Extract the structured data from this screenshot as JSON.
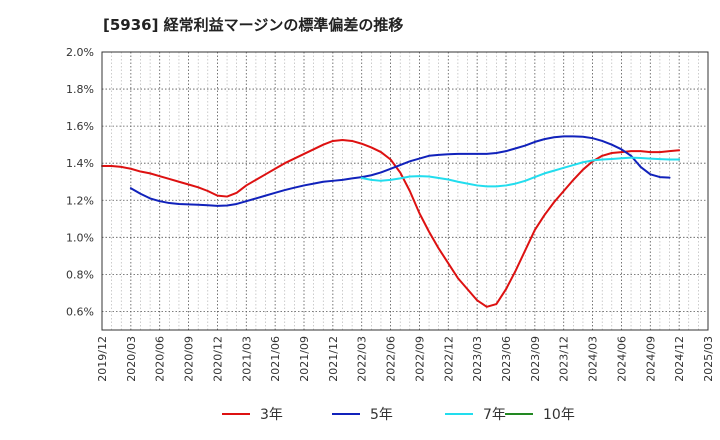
{
  "chart_data": {
    "type": "line",
    "title": "[5936]  経常利益マージンの標準偏差の推移",
    "xlabel": "",
    "ylabel": "",
    "x_ticks": [
      "2019/12",
      "2020/03",
      "2020/06",
      "2020/09",
      "2020/12",
      "2021/03",
      "2021/06",
      "2021/09",
      "2021/12",
      "2022/03",
      "2022/06",
      "2022/09",
      "2022/12",
      "2023/03",
      "2023/06",
      "2023/09",
      "2023/12",
      "2024/03",
      "2024/06",
      "2024/09",
      "2024/12",
      "2025/03"
    ],
    "y_ticks": [
      "0.6%",
      "0.8%",
      "1.0%",
      "1.2%",
      "1.4%",
      "1.6%",
      "1.8%",
      "2.0%"
    ],
    "ylim": [
      0.5,
      2.0
    ],
    "grid": true,
    "legend_position": "bottom",
    "x_dates": [
      "2019/12",
      "2020/01",
      "2020/02",
      "2020/03",
      "2020/04",
      "2020/05",
      "2020/06",
      "2020/07",
      "2020/08",
      "2020/09",
      "2020/10",
      "2020/11",
      "2020/12",
      "2021/01",
      "2021/02",
      "2021/03",
      "2021/04",
      "2021/05",
      "2021/06",
      "2021/07",
      "2021/08",
      "2021/09",
      "2021/10",
      "2021/11",
      "2021/12",
      "2022/01",
      "2022/02",
      "2022/03",
      "2022/04",
      "2022/05",
      "2022/06",
      "2022/07",
      "2022/08",
      "2022/09",
      "2022/10",
      "2022/11",
      "2022/12",
      "2023/01",
      "2023/02",
      "2023/03",
      "2023/04",
      "2023/05",
      "2023/06",
      "2023/07",
      "2023/08",
      "2023/09",
      "2023/10",
      "2023/11",
      "2023/12",
      "2024/01",
      "2024/02",
      "2024/03",
      "2024/04",
      "2024/05",
      "2024/06",
      "2024/07",
      "2024/08",
      "2024/09",
      "2024/10",
      "2024/11",
      "2024/12"
    ],
    "series": [
      {
        "name": "3年",
        "color": "#dd1111",
        "values": [
          1.385,
          1.385,
          1.38,
          1.37,
          1.355,
          1.345,
          1.33,
          1.315,
          1.3,
          1.285,
          1.27,
          1.25,
          1.225,
          1.22,
          1.24,
          1.28,
          1.31,
          1.34,
          1.37,
          1.4,
          1.425,
          1.45,
          1.475,
          1.5,
          1.52,
          1.525,
          1.52,
          1.505,
          1.485,
          1.46,
          1.42,
          1.35,
          1.25,
          1.13,
          1.03,
          0.94,
          0.86,
          0.78,
          0.72,
          0.66,
          0.625,
          0.64,
          0.72,
          0.82,
          0.93,
          1.04,
          1.12,
          1.19,
          1.25,
          1.31,
          1.365,
          1.41,
          1.44,
          1.455,
          1.46,
          1.465,
          1.465,
          1.46,
          1.46,
          1.465,
          1.47
        ]
      },
      {
        "name": "5年",
        "color": "#1122bb",
        "values": [
          null,
          null,
          null,
          1.265,
          1.235,
          1.21,
          1.195,
          1.185,
          1.18,
          1.178,
          1.176,
          1.173,
          1.17,
          1.172,
          1.18,
          1.195,
          1.21,
          1.225,
          1.24,
          1.255,
          1.268,
          1.28,
          1.29,
          1.3,
          1.305,
          1.31,
          1.318,
          1.325,
          1.335,
          1.35,
          1.37,
          1.39,
          1.41,
          1.425,
          1.44,
          1.445,
          1.448,
          1.45,
          1.45,
          1.45,
          1.45,
          1.455,
          1.465,
          1.48,
          1.495,
          1.515,
          1.53,
          1.54,
          1.545,
          1.545,
          1.543,
          1.535,
          1.52,
          1.5,
          1.475,
          1.44,
          1.38,
          1.34,
          1.325,
          1.322,
          null
        ]
      },
      {
        "name": "7年",
        "color": "#22ddee",
        "values": [
          null,
          null,
          null,
          null,
          null,
          null,
          null,
          null,
          null,
          null,
          null,
          null,
          null,
          null,
          null,
          null,
          null,
          null,
          null,
          null,
          null,
          null,
          null,
          null,
          null,
          null,
          null,
          1.32,
          1.31,
          1.305,
          1.31,
          1.318,
          1.328,
          1.33,
          1.328,
          1.32,
          1.312,
          1.3,
          1.29,
          1.28,
          1.275,
          1.275,
          1.28,
          1.29,
          1.305,
          1.325,
          1.345,
          1.36,
          1.375,
          1.39,
          1.405,
          1.415,
          1.42,
          1.423,
          1.427,
          1.43,
          1.428,
          1.425,
          1.422,
          1.42,
          1.42
        ]
      },
      {
        "name": "10年",
        "color": "#228822",
        "values": []
      }
    ]
  }
}
